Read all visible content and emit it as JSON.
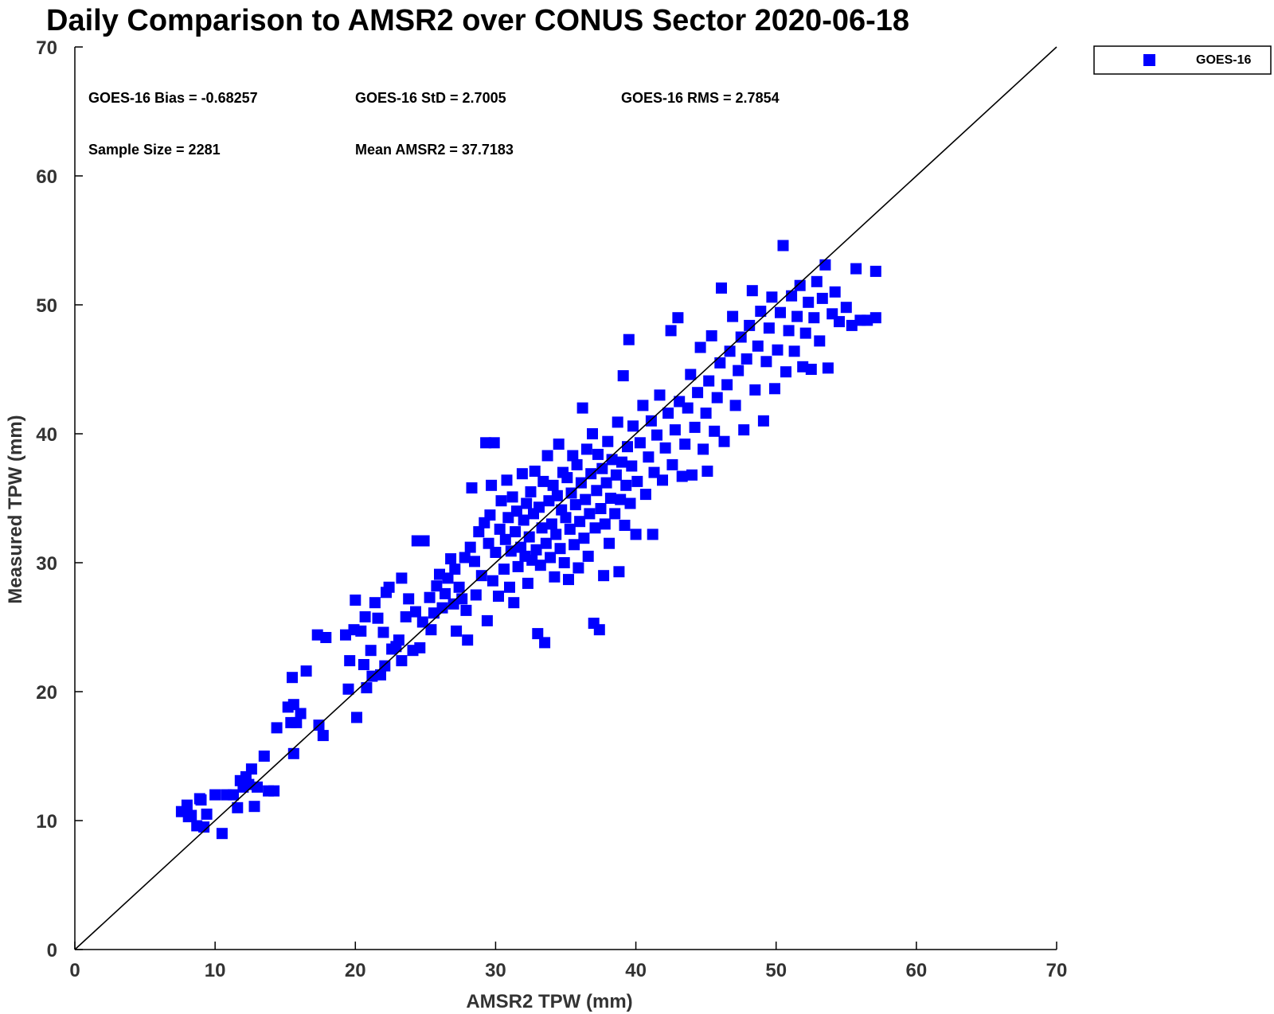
{
  "chart_data": {
    "type": "scatter",
    "title": "Daily Comparison to AMSR2 over CONUS Sector 2020-06-18",
    "xlabel": "AMSR2 TPW (mm)",
    "ylabel": "Measured TPW (mm)",
    "xlim": [
      0,
      70
    ],
    "ylim": [
      0,
      70
    ],
    "xticks": [
      "0",
      "10",
      "20",
      "30",
      "40",
      "50",
      "60",
      "70"
    ],
    "yticks": [
      "0",
      "10",
      "20",
      "30",
      "40",
      "50",
      "60",
      "70"
    ],
    "grid": false,
    "legend": {
      "placement": "outside-top-right",
      "entries": [
        "GOES-16"
      ]
    },
    "reference_line": {
      "label": "1:1 line",
      "from": [
        0,
        0
      ],
      "to": [
        70,
        70
      ]
    },
    "annotations": [
      {
        "id": "bias",
        "text": "GOES-16 Bias = -0.68257"
      },
      {
        "id": "std",
        "text": "GOES-16 StD = 2.7005"
      },
      {
        "id": "rms",
        "text": "GOES-16 RMS = 2.7854"
      },
      {
        "id": "sample",
        "text": "Sample Size = 2281"
      },
      {
        "id": "mean",
        "text": "Mean AMSR2 = 37.7183"
      }
    ],
    "series": [
      {
        "name": "GOES-16",
        "color": "#0000ff",
        "marker": "square",
        "sample_size": 2281,
        "bias": -0.68257,
        "std": 2.7005,
        "rms": 2.7854,
        "mean_x": 37.7183,
        "points_note": "representative digitized subset of the 2281 plotted samples",
        "points": [
          [
            7.6,
            10.7
          ],
          [
            8.0,
            11.2
          ],
          [
            8.3,
            10.4
          ],
          [
            8.7,
            9.6
          ],
          [
            9.0,
            11.6
          ],
          [
            9.2,
            9.5
          ],
          [
            9.4,
            10.5
          ],
          [
            8.1,
            10.3
          ],
          [
            8.9,
            11.7
          ],
          [
            10.0,
            12.0
          ],
          [
            10.5,
            9.0
          ],
          [
            10.8,
            12.0
          ],
          [
            11.3,
            12.0
          ],
          [
            11.6,
            11.0
          ],
          [
            11.8,
            13.1
          ],
          [
            12.0,
            12.6
          ],
          [
            12.2,
            13.4
          ],
          [
            12.4,
            12.8
          ],
          [
            12.6,
            14.0
          ],
          [
            12.8,
            11.1
          ],
          [
            13.0,
            12.6
          ],
          [
            13.5,
            15.0
          ],
          [
            13.8,
            12.3
          ],
          [
            14.2,
            12.3
          ],
          [
            14.4,
            17.2
          ],
          [
            15.2,
            18.8
          ],
          [
            15.4,
            17.6
          ],
          [
            15.6,
            19.0
          ],
          [
            15.5,
            21.1
          ],
          [
            15.6,
            15.2
          ],
          [
            15.8,
            17.6
          ],
          [
            16.1,
            18.3
          ],
          [
            16.5,
            21.6
          ],
          [
            17.3,
            24.4
          ],
          [
            17.4,
            17.4
          ],
          [
            17.7,
            16.6
          ],
          [
            17.9,
            24.2
          ],
          [
            19.3,
            24.4
          ],
          [
            19.5,
            20.2
          ],
          [
            19.6,
            22.4
          ],
          [
            19.9,
            24.8
          ],
          [
            20.0,
            27.1
          ],
          [
            20.1,
            18.0
          ],
          [
            20.4,
            24.7
          ],
          [
            20.6,
            22.1
          ],
          [
            20.7,
            25.8
          ],
          [
            20.8,
            20.3
          ],
          [
            21.1,
            23.2
          ],
          [
            21.2,
            21.2
          ],
          [
            21.4,
            26.9
          ],
          [
            21.6,
            25.7
          ],
          [
            21.8,
            21.3
          ],
          [
            22.0,
            24.6
          ],
          [
            22.1,
            22.0
          ],
          [
            22.2,
            27.7
          ],
          [
            22.4,
            28.1
          ],
          [
            22.6,
            23.3
          ],
          [
            22.9,
            23.5
          ],
          [
            23.1,
            24.0
          ],
          [
            23.3,
            22.4
          ],
          [
            23.3,
            28.8
          ],
          [
            23.6,
            25.8
          ],
          [
            23.8,
            27.2
          ],
          [
            24.1,
            23.2
          ],
          [
            24.3,
            26.2
          ],
          [
            24.4,
            31.7
          ],
          [
            24.6,
            23.4
          ],
          [
            24.8,
            25.4
          ],
          [
            24.9,
            31.7
          ],
          [
            25.3,
            27.3
          ],
          [
            25.4,
            24.8
          ],
          [
            25.6,
            26.1
          ],
          [
            25.8,
            28.2
          ],
          [
            26.0,
            29.1
          ],
          [
            26.2,
            26.5
          ],
          [
            26.4,
            27.6
          ],
          [
            26.6,
            28.8
          ],
          [
            26.8,
            30.3
          ],
          [
            27.0,
            26.8
          ],
          [
            27.1,
            29.5
          ],
          [
            27.2,
            24.7
          ],
          [
            27.4,
            28.1
          ],
          [
            27.6,
            27.2
          ],
          [
            27.8,
            30.4
          ],
          [
            27.9,
            26.3
          ],
          [
            28.0,
            24.0
          ],
          [
            28.2,
            31.2
          ],
          [
            28.3,
            35.8
          ],
          [
            28.5,
            30.1
          ],
          [
            28.6,
            27.5
          ],
          [
            28.8,
            32.4
          ],
          [
            29.0,
            29.0
          ],
          [
            29.2,
            33.1
          ],
          [
            29.3,
            39.3
          ],
          [
            29.4,
            25.5
          ],
          [
            29.5,
            31.5
          ],
          [
            29.6,
            33.7
          ],
          [
            29.7,
            36.0
          ],
          [
            29.8,
            28.6
          ],
          [
            29.9,
            39.3
          ],
          [
            30.0,
            30.8
          ],
          [
            30.2,
            27.4
          ],
          [
            30.3,
            32.6
          ],
          [
            30.4,
            34.8
          ],
          [
            30.6,
            29.5
          ],
          [
            30.7,
            31.8
          ],
          [
            30.8,
            36.4
          ],
          [
            30.9,
            33.5
          ],
          [
            31.0,
            28.1
          ],
          [
            31.1,
            30.9
          ],
          [
            31.2,
            35.1
          ],
          [
            31.3,
            26.9
          ],
          [
            31.4,
            32.4
          ],
          [
            31.5,
            34.0
          ],
          [
            31.6,
            29.7
          ],
          [
            31.8,
            31.2
          ],
          [
            31.9,
            36.9
          ],
          [
            32.0,
            33.3
          ],
          [
            32.1,
            30.5
          ],
          [
            32.2,
            34.6
          ],
          [
            32.3,
            28.4
          ],
          [
            32.4,
            32.0
          ],
          [
            32.5,
            35.5
          ],
          [
            32.6,
            30.2
          ],
          [
            32.7,
            33.8
          ],
          [
            32.8,
            37.1
          ],
          [
            32.9,
            31.0
          ],
          [
            33.0,
            24.5
          ],
          [
            33.1,
            34.3
          ],
          [
            33.2,
            29.8
          ],
          [
            33.3,
            32.7
          ],
          [
            33.4,
            36.3
          ],
          [
            33.5,
            23.8
          ],
          [
            33.6,
            31.5
          ],
          [
            33.7,
            38.3
          ],
          [
            33.8,
            34.8
          ],
          [
            33.9,
            30.4
          ],
          [
            34.0,
            33.0
          ],
          [
            34.1,
            36.0
          ],
          [
            34.2,
            28.9
          ],
          [
            34.3,
            32.2
          ],
          [
            34.4,
            35.2
          ],
          [
            34.5,
            39.2
          ],
          [
            34.6,
            31.1
          ],
          [
            34.7,
            34.1
          ],
          [
            34.8,
            37.0
          ],
          [
            34.9,
            30.0
          ],
          [
            35.0,
            33.5
          ],
          [
            35.1,
            36.6
          ],
          [
            35.2,
            28.7
          ],
          [
            35.3,
            32.6
          ],
          [
            35.4,
            35.4
          ],
          [
            35.5,
            38.3
          ],
          [
            35.6,
            31.4
          ],
          [
            35.7,
            34.5
          ],
          [
            35.8,
            37.6
          ],
          [
            35.9,
            29.6
          ],
          [
            36.0,
            33.2
          ],
          [
            36.1,
            36.2
          ],
          [
            36.2,
            42.0
          ],
          [
            36.3,
            31.9
          ],
          [
            36.4,
            34.9
          ],
          [
            36.5,
            38.8
          ],
          [
            36.6,
            30.5
          ],
          [
            36.7,
            33.8
          ],
          [
            36.8,
            36.9
          ],
          [
            36.9,
            40.0
          ],
          [
            37.0,
            25.3
          ],
          [
            37.1,
            32.7
          ],
          [
            37.2,
            35.6
          ],
          [
            37.3,
            38.4
          ],
          [
            37.4,
            24.8
          ],
          [
            37.5,
            34.2
          ],
          [
            37.6,
            37.3
          ],
          [
            37.7,
            29.0
          ],
          [
            37.8,
            33.0
          ],
          [
            37.9,
            36.2
          ],
          [
            38.0,
            39.4
          ],
          [
            38.1,
            31.5
          ],
          [
            38.2,
            35.0
          ],
          [
            38.3,
            38.0
          ],
          [
            38.5,
            33.8
          ],
          [
            38.6,
            36.8
          ],
          [
            38.7,
            40.9
          ],
          [
            38.8,
            29.3
          ],
          [
            38.9,
            34.9
          ],
          [
            39.0,
            37.8
          ],
          [
            39.1,
            44.5
          ],
          [
            39.2,
            32.9
          ],
          [
            39.3,
            36.0
          ],
          [
            39.4,
            39.0
          ],
          [
            39.5,
            47.3
          ],
          [
            39.6,
            34.6
          ],
          [
            39.7,
            37.5
          ],
          [
            39.8,
            40.6
          ],
          [
            40.0,
            32.2
          ],
          [
            40.1,
            36.3
          ],
          [
            40.3,
            39.3
          ],
          [
            40.5,
            42.2
          ],
          [
            40.7,
            35.3
          ],
          [
            40.9,
            38.2
          ],
          [
            41.1,
            41.0
          ],
          [
            41.2,
            32.2
          ],
          [
            41.3,
            37.0
          ],
          [
            41.5,
            39.9
          ],
          [
            41.7,
            43.0
          ],
          [
            41.9,
            36.4
          ],
          [
            42.1,
            38.9
          ],
          [
            42.3,
            41.6
          ],
          [
            42.5,
            48.0
          ],
          [
            42.6,
            37.6
          ],
          [
            42.8,
            40.3
          ],
          [
            43.0,
            49.0
          ],
          [
            43.1,
            42.5
          ],
          [
            43.3,
            36.7
          ],
          [
            43.5,
            39.2
          ],
          [
            43.7,
            42.0
          ],
          [
            43.9,
            44.6
          ],
          [
            44.0,
            36.8
          ],
          [
            44.2,
            40.5
          ],
          [
            44.4,
            43.2
          ],
          [
            44.6,
            46.7
          ],
          [
            44.8,
            38.8
          ],
          [
            45.0,
            41.6
          ],
          [
            45.1,
            37.1
          ],
          [
            45.2,
            44.1
          ],
          [
            45.4,
            47.6
          ],
          [
            45.6,
            40.2
          ],
          [
            45.8,
            42.8
          ],
          [
            46.0,
            45.5
          ],
          [
            46.1,
            51.3
          ],
          [
            46.3,
            39.4
          ],
          [
            46.5,
            43.8
          ],
          [
            46.7,
            46.4
          ],
          [
            46.9,
            49.1
          ],
          [
            47.1,
            42.2
          ],
          [
            47.3,
            44.9
          ],
          [
            47.5,
            47.5
          ],
          [
            47.7,
            40.3
          ],
          [
            47.9,
            45.8
          ],
          [
            48.1,
            48.4
          ],
          [
            48.3,
            51.1
          ],
          [
            48.5,
            43.4
          ],
          [
            48.7,
            46.8
          ],
          [
            48.9,
            49.5
          ],
          [
            49.1,
            41.0
          ],
          [
            49.3,
            45.6
          ],
          [
            49.5,
            48.2
          ],
          [
            49.7,
            50.6
          ],
          [
            49.9,
            43.5
          ],
          [
            50.1,
            46.5
          ],
          [
            50.3,
            49.4
          ],
          [
            50.5,
            54.6
          ],
          [
            50.7,
            44.8
          ],
          [
            50.9,
            48.0
          ],
          [
            51.1,
            50.7
          ],
          [
            51.3,
            46.4
          ],
          [
            51.5,
            49.1
          ],
          [
            51.7,
            51.5
          ],
          [
            51.9,
            45.2
          ],
          [
            52.1,
            47.8
          ],
          [
            52.3,
            50.2
          ],
          [
            52.5,
            45.0
          ],
          [
            52.7,
            49.0
          ],
          [
            52.9,
            51.8
          ],
          [
            53.1,
            47.2
          ],
          [
            53.3,
            50.5
          ],
          [
            53.5,
            53.1
          ],
          [
            53.7,
            45.1
          ],
          [
            54.0,
            49.3
          ],
          [
            54.2,
            51.0
          ],
          [
            54.5,
            48.7
          ],
          [
            55.0,
            49.8
          ],
          [
            55.4,
            48.4
          ],
          [
            55.7,
            52.8
          ],
          [
            56.0,
            48.8
          ],
          [
            56.5,
            48.8
          ],
          [
            57.1,
            52.6
          ],
          [
            57.1,
            49.0
          ]
        ]
      }
    ]
  }
}
